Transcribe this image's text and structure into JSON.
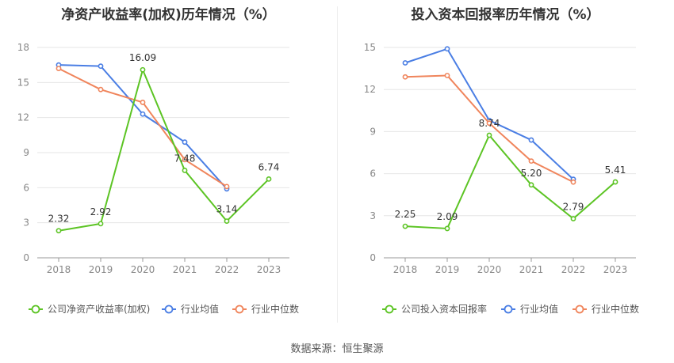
{
  "charts": [
    {
      "title": "净资产收益率(加权)历年情况（%）",
      "legend": [
        {
          "label": "公司净资产收益率(加权)",
          "color": "#5CC424"
        },
        {
          "label": "行业均值",
          "color": "#4A7EE4"
        },
        {
          "label": "行业中位数",
          "color": "#F0855C"
        }
      ]
    },
    {
      "title": "投入资本回报率历年情况（%）",
      "legend": [
        {
          "label": "公司投入资本回报率",
          "color": "#5CC424"
        },
        {
          "label": "行业均值",
          "color": "#4A7EE4"
        },
        {
          "label": "行业中位数",
          "color": "#F0855C"
        }
      ]
    }
  ],
  "source": "数据来源：恒生聚源",
  "chart_data": [
    {
      "type": "line",
      "title": "净资产收益率(加权)历年情况（%）",
      "categories": [
        "2018",
        "2019",
        "2020",
        "2021",
        "2022",
        "2023"
      ],
      "ylim": [
        0,
        18
      ],
      "yticks": [
        0,
        3,
        6,
        9,
        12,
        15,
        18
      ],
      "grid": true,
      "legend_position": "bottom",
      "series": [
        {
          "name": "公司净资产收益率(加权)",
          "color": "#5CC424",
          "labeled": true,
          "labels": [
            "2.32",
            "2.92",
            "16.09",
            "7.48",
            "3.14",
            "6.74"
          ],
          "values": [
            2.32,
            2.92,
            16.09,
            7.48,
            3.14,
            6.74
          ]
        },
        {
          "name": "行业均值",
          "color": "#4A7EE4",
          "labeled": false,
          "values": [
            16.5,
            16.4,
            12.3,
            9.9,
            5.9,
            null
          ]
        },
        {
          "name": "行业中位数",
          "color": "#F0855C",
          "labeled": false,
          "values": [
            16.2,
            14.4,
            13.3,
            8.4,
            6.1,
            null
          ]
        }
      ]
    },
    {
      "type": "line",
      "title": "投入资本回报率历年情况（%）",
      "categories": [
        "2018",
        "2019",
        "2020",
        "2021",
        "2022",
        "2023"
      ],
      "ylim": [
        0,
        15
      ],
      "yticks": [
        0,
        3,
        6,
        9,
        12,
        15
      ],
      "grid": true,
      "legend_position": "bottom",
      "series": [
        {
          "name": "公司投入资本回报率",
          "color": "#5CC424",
          "labeled": true,
          "labels": [
            "2.25",
            "2.09",
            "8.74",
            "5.20",
            "2.79",
            "5.41"
          ],
          "values": [
            2.25,
            2.09,
            8.74,
            5.2,
            2.79,
            5.41
          ]
        },
        {
          "name": "行业均值",
          "color": "#4A7EE4",
          "labeled": false,
          "values": [
            13.9,
            14.9,
            9.8,
            8.4,
            5.6,
            null
          ]
        },
        {
          "name": "行业中位数",
          "color": "#F0855C",
          "labeled": false,
          "values": [
            12.9,
            13.0,
            9.6,
            6.9,
            5.4,
            null
          ]
        }
      ]
    }
  ]
}
